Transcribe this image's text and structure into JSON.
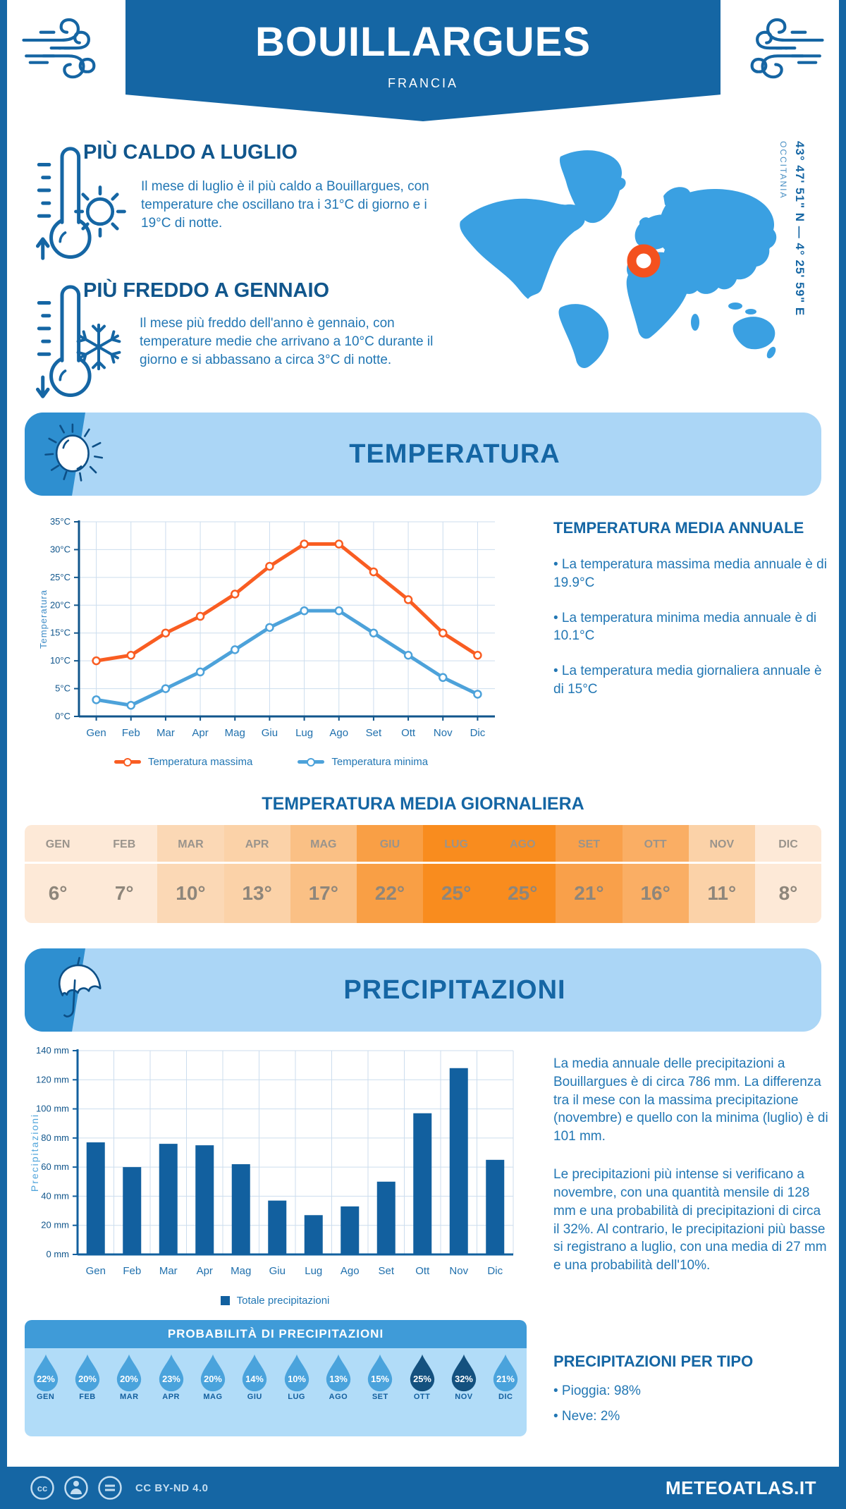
{
  "colors": {
    "primary_blue": "#1566a4",
    "body_blue": "#2277b4",
    "map_blue": "#3aa0e2",
    "banner_light": "#abd6f6",
    "banner_tab": "#2e8fd0",
    "marker_orange": "#f4511e",
    "drop_blue": "#4aa3dc",
    "drop_dark": "#14517f",
    "bar_blue": "#12609f"
  },
  "header": {
    "title": "BOUILLARGUES",
    "subtitle": "FRANCIA"
  },
  "location": {
    "coords": "43° 47' 51\" N — 4° 25' 59\" E",
    "region": "OCCITANIA"
  },
  "highlights": [
    {
      "title": "PIÙ CALDO A LUGLIO",
      "text": "Il mese di luglio è il più caldo a Bouillargues, con temperature che oscillano tra i 31°C di giorno e i 19°C di notte."
    },
    {
      "title": "PIÙ FREDDO A GENNAIO",
      "text": "Il mese più freddo dell'anno è gennaio, con temperature medie che arrivano a 10°C durante il giorno e si abbassano a circa 3°C di notte."
    }
  ],
  "temperature_section": {
    "banner": "TEMPERATURA",
    "annual": {
      "heading": "TEMPERATURA MEDIA ANNUALE",
      "bullets": [
        "• La temperatura massima media annuale è di 19.9°C",
        "• La temperatura minima media annuale è di 10.1°C",
        "• La temperatura media giornaliera annuale è di 15°C"
      ]
    },
    "daily_heading": "TEMPERATURA MEDIA GIORNALIERA",
    "daily_table": {
      "months": [
        "GEN",
        "FEB",
        "MAR",
        "APR",
        "MAG",
        "GIU",
        "LUG",
        "AGO",
        "SET",
        "OTT",
        "NOV",
        "DIC"
      ],
      "values": [
        "6°",
        "7°",
        "10°",
        "13°",
        "17°",
        "22°",
        "25°",
        "25°",
        "21°",
        "16°",
        "11°",
        "8°"
      ],
      "colors": [
        "#fde9d7",
        "#fde9d7",
        "#fbd8b5",
        "#fbd2a8",
        "#fac085",
        "#f99f45",
        "#f98c1e",
        "#f98c1e",
        "#f9a04a",
        "#faae64",
        "#fbd2a8",
        "#fde9d7"
      ]
    }
  },
  "precipitation_section": {
    "banner": "PRECIPITAZIONI",
    "paragraphs": [
      "La media annuale delle precipitazioni a Bouillargues è di circa 786 mm. La differenza tra il mese con la massima precipitazione (novembre) e quello con la minima (luglio) è di 101 mm.",
      "Le precipitazioni più intense si verificano a novembre, con una quantità mensile di 128 mm e una probabilità di precipitazioni di circa il 32%. Al contrario, le precipitazioni più basse si registrano a luglio, con una media di 27 mm e una probabilità dell'10%."
    ],
    "probability": {
      "heading": "PROBABILITÀ DI PRECIPITAZIONI",
      "months": [
        "GEN",
        "FEB",
        "MAR",
        "APR",
        "MAG",
        "GIU",
        "LUG",
        "AGO",
        "SET",
        "OTT",
        "NOV",
        "DIC"
      ],
      "values": [
        "22%",
        "20%",
        "20%",
        "23%",
        "20%",
        "14%",
        "10%",
        "13%",
        "15%",
        "25%",
        "32%",
        "21%"
      ],
      "dark": [
        false,
        false,
        false,
        false,
        false,
        false,
        false,
        false,
        false,
        true,
        true,
        false
      ]
    },
    "by_type": {
      "heading": "PRECIPITAZIONI PER TIPO",
      "bullets": [
        "• Pioggia: 98%",
        "• Neve: 2%"
      ]
    }
  },
  "footer": {
    "license": "CC BY-ND 4.0",
    "site": "METEOATLAS.IT"
  },
  "chart_data": [
    {
      "type": "line",
      "title": "",
      "categories": [
        "Gen",
        "Feb",
        "Mar",
        "Apr",
        "Mag",
        "Giu",
        "Lug",
        "Ago",
        "Set",
        "Ott",
        "Nov",
        "Dic"
      ],
      "series": [
        {
          "name": "Temperatura massima",
          "color": "#f95d22",
          "values": [
            10,
            11,
            15,
            18,
            22,
            27,
            31,
            31,
            26,
            21,
            15,
            11
          ]
        },
        {
          "name": "Temperatura minima",
          "color": "#4da2da",
          "values": [
            3,
            2,
            5,
            8,
            12,
            16,
            19,
            19,
            15,
            11,
            7,
            4
          ]
        }
      ],
      "xlabel": "",
      "ylabel": "Temperatura",
      "ylim": [
        0,
        35
      ],
      "ystep": 5,
      "yunit": "°C",
      "grid": true,
      "legend_position": "bottom"
    },
    {
      "type": "bar",
      "title": "",
      "categories": [
        "Gen",
        "Feb",
        "Mar",
        "Apr",
        "Mag",
        "Giu",
        "Lug",
        "Ago",
        "Set",
        "Ott",
        "Nov",
        "Dic"
      ],
      "values": [
        77,
        60,
        76,
        75,
        62,
        37,
        27,
        33,
        50,
        97,
        128,
        65
      ],
      "series_name": "Totale precipitazioni",
      "color": "#12609f",
      "xlabel": "",
      "ylabel": "Precipitazioni",
      "ylim": [
        0,
        140
      ],
      "ystep": 20,
      "yunit": " mm",
      "grid": true,
      "legend_position": "bottom"
    }
  ]
}
